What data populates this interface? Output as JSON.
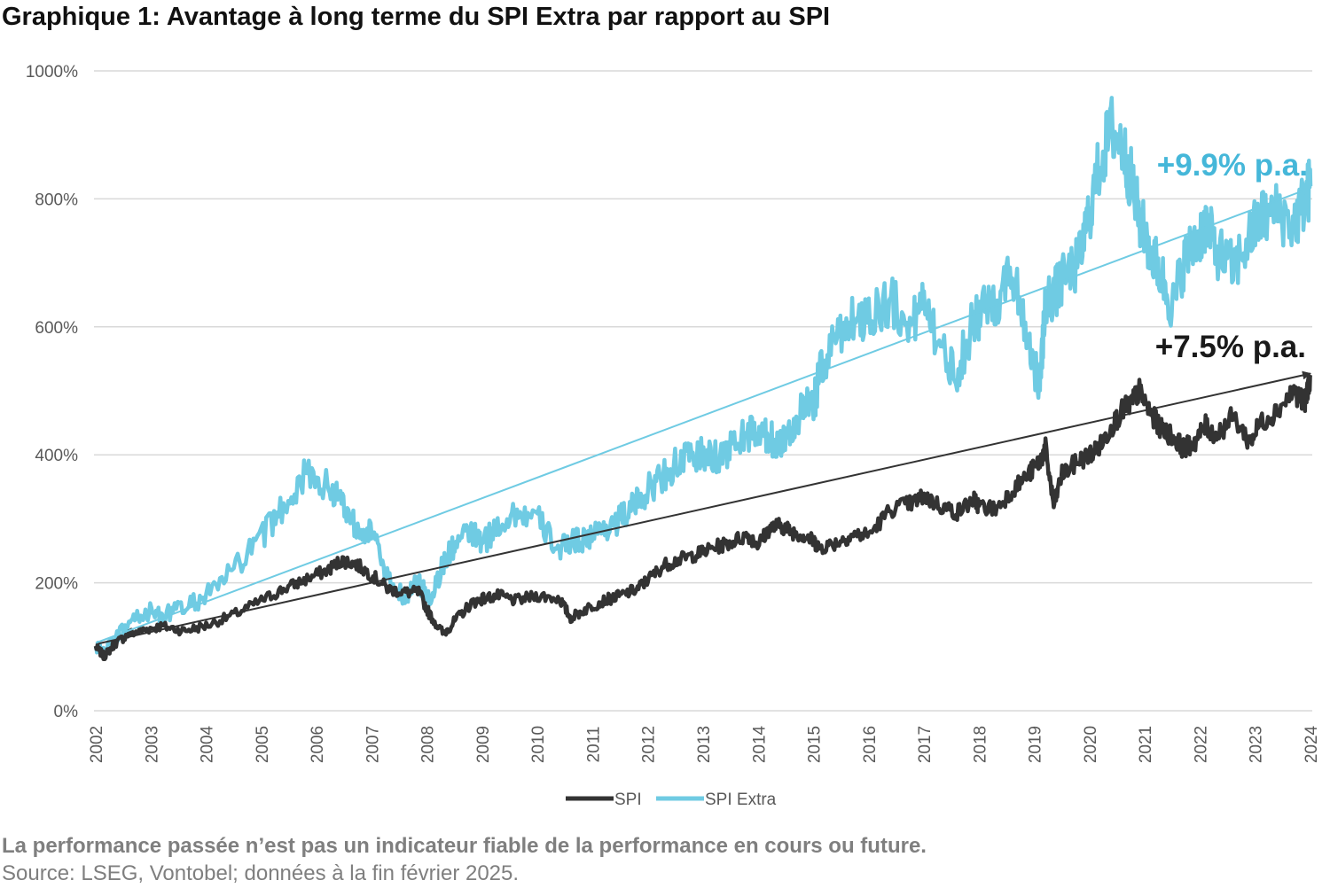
{
  "title": "Graphique 1: Avantage à long terme du SPI Extra par rapport au SPI",
  "disclaimer": "La performance passée n’est pas un indicateur fiable de la performance en cours ou future.",
  "source": "Source: LSEG, Vontobel; données à la fin février 2025.",
  "colors": {
    "spi": "#333333",
    "spi_extra": "#6fcbe3",
    "spi_extra_annotation": "#45b7d9",
    "grid": "#d9d9d9",
    "axis_text": "#595959"
  },
  "chart_data": {
    "type": "line",
    "title": "Graphique 1: Avantage à long terme du SPI Extra par rapport au SPI",
    "xlabel": "",
    "ylabel": "",
    "ylim": [
      0,
      1000
    ],
    "xlim": [
      2002,
      2024
    ],
    "y_ticks": [
      "0%",
      "200%",
      "400%",
      "600%",
      "800%",
      "1000%"
    ],
    "y_tick_values": [
      0,
      200,
      400,
      600,
      800,
      1000
    ],
    "x_ticks": [
      "2002",
      "2003",
      "2004",
      "2005",
      "2006",
      "2007",
      "2008",
      "2009",
      "2010",
      "2011",
      "2012",
      "2013",
      "2014",
      "2015",
      "2016",
      "2017",
      "2018",
      "2019",
      "2020",
      "2021",
      "2022",
      "2023",
      "2024"
    ],
    "x_tick_values": [
      2002,
      2003,
      2004,
      2005,
      2006,
      2007,
      2008,
      2009,
      2010,
      2011,
      2012,
      2013,
      2014,
      2015,
      2016,
      2017,
      2018,
      2019,
      2020,
      2021,
      2022,
      2023,
      2024
    ],
    "grid": true,
    "legend_position": "bottom-center",
    "series": [
      {
        "name": "SPI",
        "x": [
          2002.0,
          2002.15,
          2002.35,
          2002.6,
          2002.9,
          2003.2,
          2003.6,
          2004.0,
          2004.5,
          2005.0,
          2005.4,
          2005.8,
          2006.2,
          2006.45,
          2006.7,
          2007.0,
          2007.3,
          2007.6,
          2007.85,
          2008.05,
          2008.3,
          2008.5,
          2008.8,
          2009.0,
          2009.3,
          2009.6,
          2010.0,
          2010.4,
          2010.6,
          2010.9,
          2011.2,
          2011.5,
          2011.8,
          2012.0,
          2012.3,
          2012.6,
          2012.9,
          2013.2,
          2013.5,
          2013.8,
          2014.0,
          2014.2,
          2014.4,
          2014.6,
          2014.8,
          2015.0,
          2015.1,
          2015.4,
          2015.7,
          2016.0,
          2016.4,
          2016.8,
          2017.0,
          2017.3,
          2017.6,
          2017.9,
          2018.0,
          2018.3,
          2018.6,
          2018.9,
          2019.1,
          2019.2,
          2019.35,
          2019.5,
          2019.8,
          2020.0,
          2020.2,
          2020.4,
          2020.6,
          2020.75,
          2020.9,
          2021.1,
          2021.3,
          2021.5,
          2021.7,
          2021.9,
          2022.1,
          2022.3,
          2022.6,
          2022.9,
          2023.1,
          2023.4,
          2023.7,
          2023.9,
          2024.0
        ],
        "values": [
          100,
          85,
          105,
          120,
          127,
          132,
          125,
          133,
          150,
          172,
          190,
          205,
          220,
          235,
          230,
          212,
          190,
          185,
          185,
          150,
          120,
          140,
          168,
          175,
          180,
          172,
          180,
          175,
          145,
          160,
          172,
          180,
          190,
          205,
          228,
          237,
          245,
          255,
          263,
          275,
          260,
          285,
          290,
          280,
          275,
          265,
          255,
          262,
          275,
          275,
          315,
          325,
          335,
          320,
          310,
          330,
          320,
          315,
          345,
          370,
          390,
          410,
          320,
          370,
          390,
          400,
          415,
          445,
          470,
          480,
          500,
          465,
          440,
          430,
          410,
          420,
          445,
          430,
          460,
          420,
          450,
          470,
          500,
          480,
          525
        ]
      },
      {
        "name": "SPI Extra",
        "x": [
          2002.0,
          2002.15,
          2002.35,
          2002.6,
          2002.9,
          2003.2,
          2003.6,
          2004.0,
          2004.5,
          2005.0,
          2005.4,
          2005.8,
          2006.2,
          2006.45,
          2006.7,
          2007.0,
          2007.3,
          2007.6,
          2007.85,
          2008.05,
          2008.3,
          2008.5,
          2008.8,
          2009.0,
          2009.3,
          2009.6,
          2010.0,
          2010.4,
          2010.6,
          2010.9,
          2011.2,
          2011.5,
          2011.8,
          2012.0,
          2012.3,
          2012.6,
          2012.9,
          2013.2,
          2013.5,
          2013.8,
          2014.0,
          2014.2,
          2014.4,
          2014.6,
          2014.8,
          2015.0,
          2015.1,
          2015.4,
          2015.7,
          2016.0,
          2016.4,
          2016.8,
          2017.0,
          2017.3,
          2017.6,
          2017.9,
          2018.0,
          2018.3,
          2018.6,
          2018.9,
          2019.1,
          2019.2,
          2019.35,
          2019.5,
          2019.8,
          2020.0,
          2020.2,
          2020.4,
          2020.6,
          2020.75,
          2020.9,
          2021.1,
          2021.3,
          2021.5,
          2021.7,
          2021.9,
          2022.1,
          2022.3,
          2022.6,
          2022.9,
          2023.1,
          2023.4,
          2023.7,
          2023.9,
          2024.0
        ],
        "values": [
          100,
          90,
          110,
          135,
          155,
          150,
          160,
          180,
          220,
          270,
          320,
          370,
          350,
          330,
          290,
          280,
          200,
          180,
          200,
          175,
          230,
          260,
          280,
          260,
          290,
          310,
          300,
          250,
          265,
          270,
          285,
          300,
          325,
          345,
          370,
          390,
          400,
          395,
          410,
          435,
          430,
          425,
          420,
          440,
          470,
          475,
          520,
          590,
          610,
          620,
          640,
          600,
          660,
          560,
          530,
          610,
          620,
          640,
          690,
          580,
          500,
          640,
          650,
          670,
          700,
          780,
          860,
          910,
          880,
          830,
          770,
          720,
          680,
          630,
          700,
          730,
          760,
          720,
          690,
          740,
          770,
          780,
          760,
          800,
          820
        ]
      }
    ],
    "trend_lines": [
      {
        "series": "SPI",
        "label": "+7.5% p.a.",
        "from": [
          2002.0,
          104
        ],
        "to": [
          2024.0,
          527
        ]
      },
      {
        "series": "SPI Extra",
        "label": "+9.9% p.a.",
        "from": [
          2002.0,
          106
        ],
        "to": [
          2024.0,
          817
        ]
      }
    ]
  }
}
